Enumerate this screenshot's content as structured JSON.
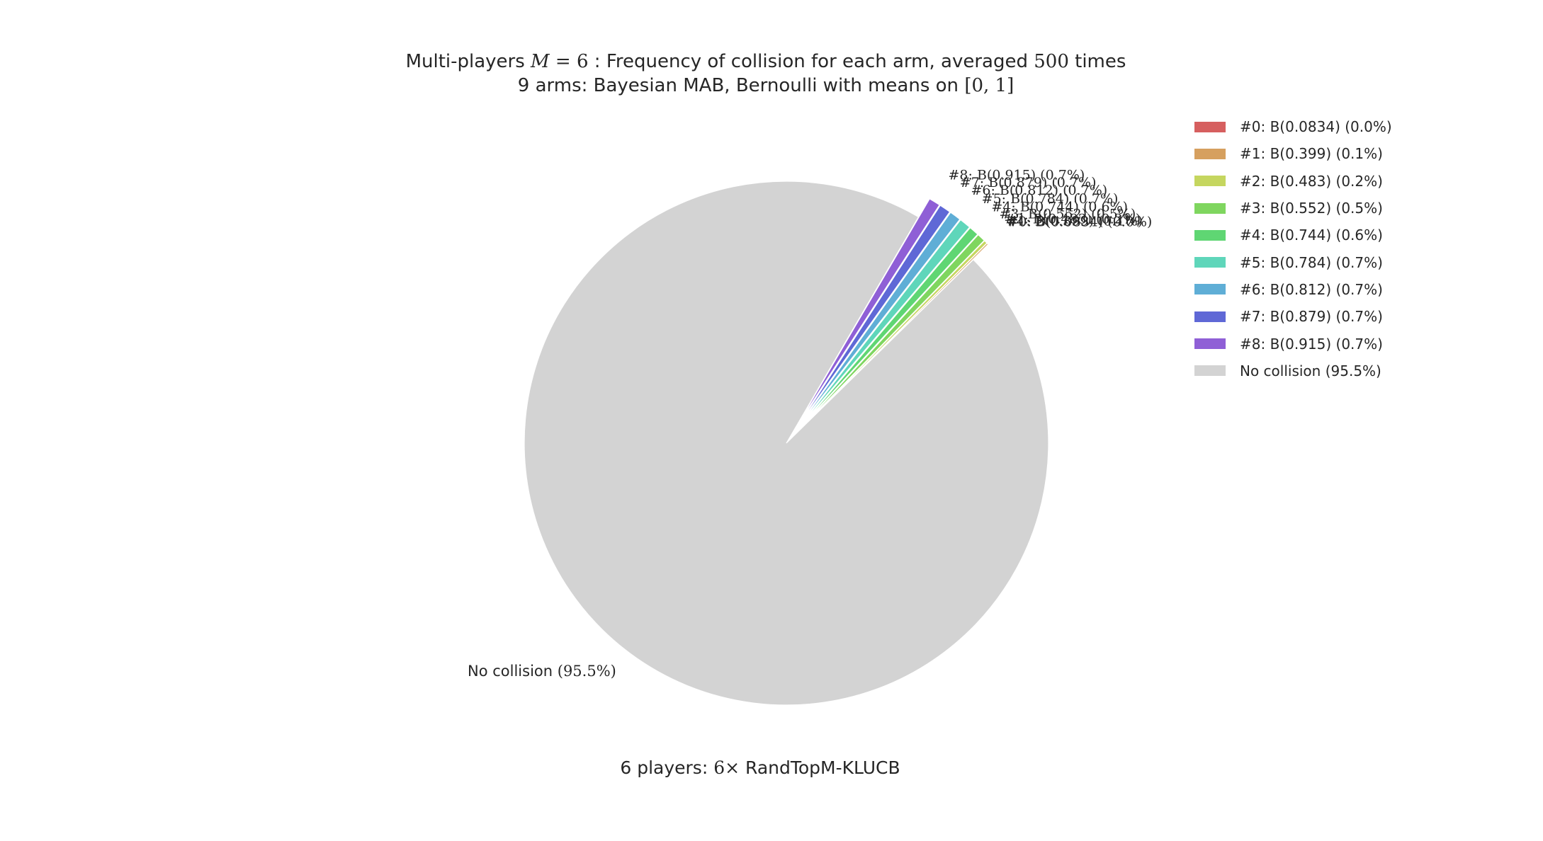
{
  "chart_data": {
    "type": "pie",
    "title": "Multi-players M=6 : Frequency of collision for each arm, averaged 500 times",
    "subtitle": "9 arms: Bayesian MAB, Bernoulli with means on [0,1]",
    "xlabel": "6 players: 6× RandTopM-KLUCB",
    "slices": [
      {
        "label": "#0: B(0.0834) (0.0%)",
        "value": 0.02,
        "color": "#d65f5f",
        "explode": true
      },
      {
        "label": "#1: B(0.399) (0.1%)",
        "value": 0.1,
        "color": "#d6a05f",
        "explode": true
      },
      {
        "label": "#2: B(0.483) (0.2%)",
        "value": 0.2,
        "color": "#c5d65f",
        "explode": true
      },
      {
        "label": "#3: B(0.552) (0.5%)",
        "value": 0.5,
        "color": "#7fd65f",
        "explode": true
      },
      {
        "label": "#4: B(0.744) (0.6%)",
        "value": 0.6,
        "color": "#5fd673",
        "explode": true
      },
      {
        "label": "#5: B(0.784) (0.7%)",
        "value": 0.7,
        "color": "#5fd6ba",
        "explode": true
      },
      {
        "label": "#6: B(0.812) (0.7%)",
        "value": 0.7,
        "color": "#5faed6",
        "explode": true
      },
      {
        "label": "#7: B(0.879) (0.7%)",
        "value": 0.7,
        "color": "#5f68d6",
        "explode": true
      },
      {
        "label": "#8: B(0.915) (0.7%)",
        "value": 0.7,
        "color": "#8f5fd6",
        "explode": true
      },
      {
        "label": "No collision (95.5%)",
        "value": 95.5,
        "color": "#d3d3d3",
        "explode": false
      }
    ],
    "legend_position": "top-right"
  },
  "title_parts": {
    "l1a": "Multi-players ",
    "l1m": "M",
    "l1eq": " = 6",
    "l1b": " : Frequency of collision for each arm, averaged ",
    "l1n": "500",
    "l1c": " times",
    "l2a": "9 arms: Bayesian MAB, Bernoulli with means on ",
    "l2m": "[0, 1]"
  },
  "xlabel_parts": {
    "a": "6 players: ",
    "m": "6×",
    "b": " RandTopM-KLUCB"
  },
  "no_collision_label": {
    "text": "No collision ",
    "pct": "(95.5%)"
  }
}
